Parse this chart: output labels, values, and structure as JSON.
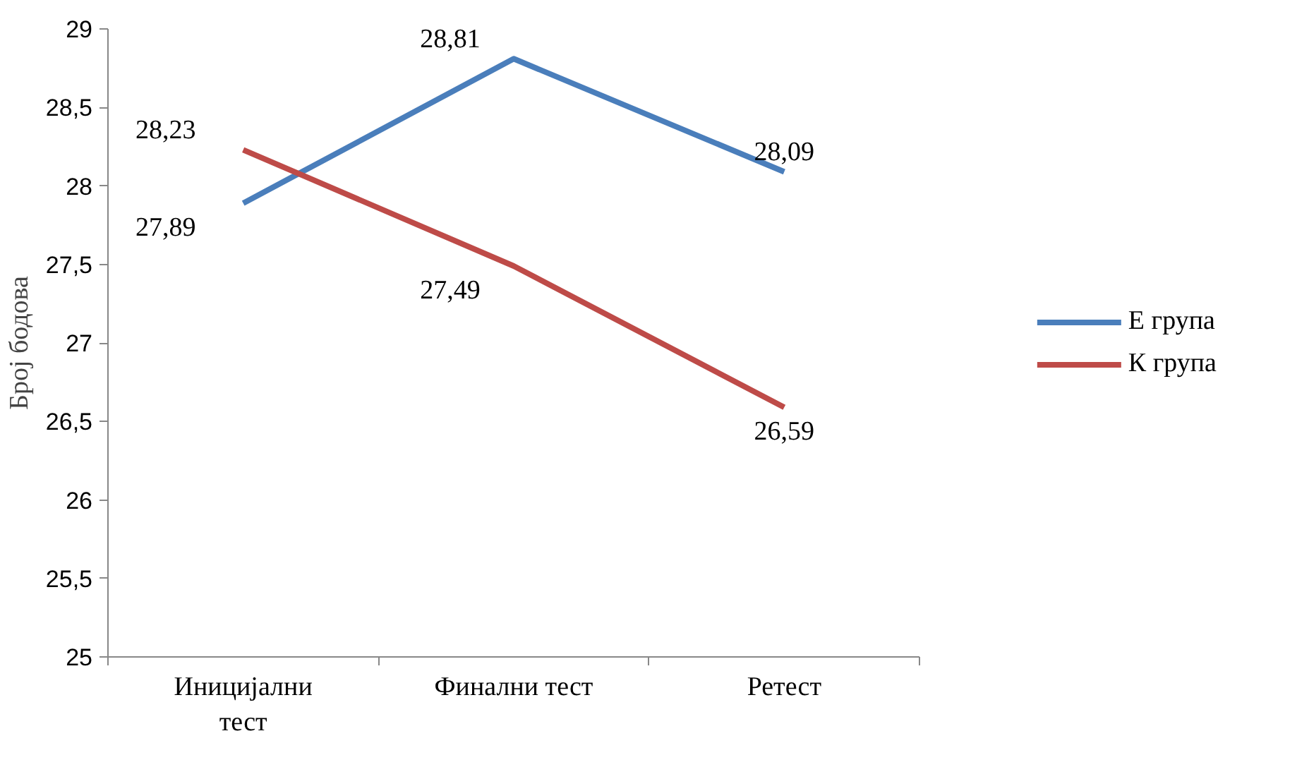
{
  "chart_data": {
    "type": "line",
    "ylabel": "Број бодова",
    "categories": [
      "Иницијални тест",
      "Финални тест",
      "Ретест"
    ],
    "series": [
      {
        "name": "Е група",
        "color": "#4a7ebb",
        "values": [
          27.89,
          28.81,
          28.09
        ],
        "value_labels": [
          "27,89",
          "28,81",
          "28,09"
        ]
      },
      {
        "name": "К група",
        "color": "#be4b48",
        "values": [
          28.23,
          27.49,
          26.59
        ],
        "value_labels": [
          "28,23",
          "27,49",
          "26,59"
        ]
      }
    ],
    "ylim": [
      25,
      29
    ],
    "yticks": [
      25,
      {
        "value": 25.5,
        "label": "25,5"
      },
      26,
      {
        "value": 26.5,
        "label": "26,5"
      },
      27,
      {
        "value": 27.5,
        "label": "27,5"
      },
      28,
      {
        "value": 28.5,
        "label": "28,5"
      },
      29
    ],
    "grid": false,
    "legend": "right",
    "marker": "none",
    "line_style": "solid"
  }
}
